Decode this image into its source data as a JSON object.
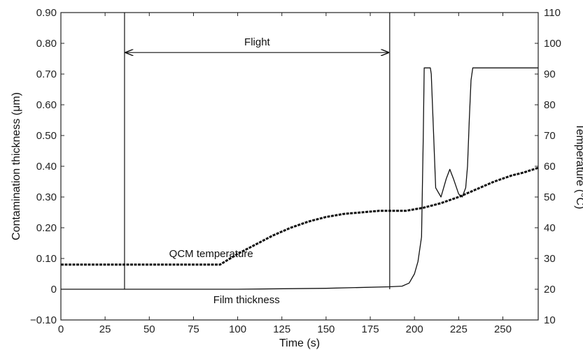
{
  "chart_data": {
    "type": "line",
    "title": "",
    "xlabel": "Time (s)",
    "ylabel_left": "Contamination thickness (μm)",
    "ylabel_right": "Temperature (°C)",
    "xlim": [
      0,
      270
    ],
    "ylim_left": [
      -0.1,
      0.9
    ],
    "ylim_right": [
      10,
      110
    ],
    "x_ticks": [
      0,
      25,
      50,
      75,
      100,
      125,
      150,
      175,
      200,
      225,
      250
    ],
    "x_tick_labels": [
      "0",
      "25",
      "50",
      "75",
      "100",
      "125",
      "150",
      "175",
      "200",
      "225",
      "250"
    ],
    "y_left_ticks": [
      -0.1,
      0,
      0.1,
      0.2,
      0.3,
      0.4,
      0.5,
      0.6,
      0.7,
      0.8,
      0.9
    ],
    "y_left_tick_labels": [
      "−0.10",
      "0",
      "0.10",
      "0.20",
      "0.30",
      "0.40",
      "0.50",
      "0.60",
      "0.70",
      "0.80",
      "0.90"
    ],
    "y_right_ticks": [
      10,
      20,
      30,
      40,
      50,
      60,
      70,
      80,
      90,
      100,
      110
    ],
    "y_right_tick_labels": [
      "10",
      "20",
      "30",
      "40",
      "50",
      "60",
      "70",
      "80",
      "90",
      "100",
      "110"
    ],
    "grid": false,
    "series": [
      {
        "name": "QCM temperature",
        "axis": "right",
        "x": [
          0,
          35,
          90,
          100,
          110,
          120,
          130,
          140,
          150,
          160,
          170,
          180,
          186,
          195,
          205,
          215,
          225,
          235,
          245,
          255,
          262,
          270
        ],
        "y": [
          28,
          28,
          28,
          31.5,
          34.5,
          37.5,
          40,
          42,
          43.5,
          44.5,
          45,
          45.5,
          45.5,
          45.5,
          46.5,
          48,
          50,
          52.5,
          55,
          57,
          58,
          59.5
        ]
      },
      {
        "name": "Film thickness",
        "axis": "left",
        "x": [
          0,
          50,
          100,
          150,
          186,
          193,
          197,
          200,
          202,
          204,
          205,
          205.5,
          209,
          209.5,
          212,
          215,
          218,
          220,
          222,
          225,
          227,
          229,
          230,
          231,
          232,
          233,
          235,
          250,
          270
        ],
        "y": [
          0,
          0,
          0,
          0.003,
          0.008,
          0.01,
          0.02,
          0.05,
          0.09,
          0.17,
          0.5,
          0.72,
          0.72,
          0.7,
          0.33,
          0.3,
          0.36,
          0.39,
          0.36,
          0.31,
          0.3,
          0.33,
          0.4,
          0.55,
          0.68,
          0.72,
          0.72,
          0.72,
          0.72
        ]
      }
    ],
    "annotations": [
      {
        "text": "Flight",
        "x_start": 36,
        "x_end": 186,
        "y": 0.77
      },
      {
        "text": "QCM temperature",
        "x": 85,
        "y": 0.105
      },
      {
        "text": "Film thickness",
        "x": 105,
        "y": -0.045
      }
    ],
    "vlines": [
      36,
      186
    ]
  }
}
